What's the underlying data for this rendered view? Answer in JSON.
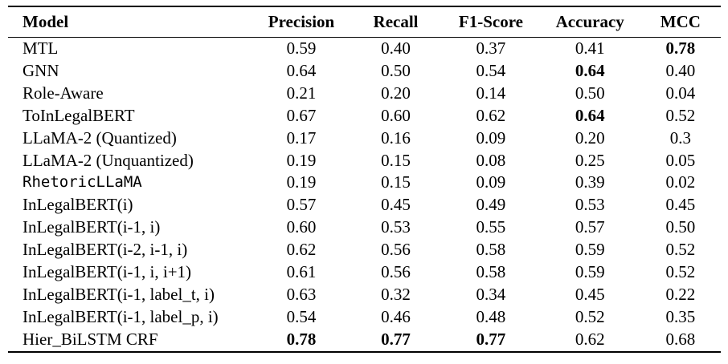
{
  "table": {
    "columns": [
      "Model",
      "Precision",
      "Recall",
      "F1-Score",
      "Accuracy",
      "MCC"
    ],
    "rows": [
      {
        "model": "MTL",
        "mono": false,
        "values": [
          "0.59",
          "0.40",
          "0.37",
          "0.41",
          "0.78"
        ],
        "bold": [
          4
        ]
      },
      {
        "model": "GNN",
        "mono": false,
        "values": [
          "0.64",
          "0.50",
          "0.54",
          "0.64",
          "0.40"
        ],
        "bold": [
          3
        ]
      },
      {
        "model": "Role-Aware",
        "mono": false,
        "values": [
          "0.21",
          "0.20",
          "0.14",
          "0.50",
          "0.04"
        ],
        "bold": []
      },
      {
        "model": "ToInLegalBERT",
        "mono": false,
        "values": [
          "0.67",
          "0.60",
          "0.62",
          "0.64",
          "0.52"
        ],
        "bold": [
          3
        ]
      },
      {
        "model": "LLaMA-2 (Quantized)",
        "mono": false,
        "values": [
          "0.17",
          "0.16",
          "0.09",
          "0.20",
          "0.3"
        ],
        "bold": []
      },
      {
        "model": "LLaMA-2 (Unquantized)",
        "mono": false,
        "values": [
          "0.19",
          "0.15",
          "0.08",
          "0.25",
          "0.05"
        ],
        "bold": []
      },
      {
        "model": "RhetoricLLaMA",
        "mono": true,
        "values": [
          "0.19",
          "0.15",
          "0.09",
          "0.39",
          "0.02"
        ],
        "bold": []
      },
      {
        "model": "InLegalBERT(i)",
        "mono": false,
        "values": [
          "0.57",
          "0.45",
          "0.49",
          "0.53",
          "0.45"
        ],
        "bold": []
      },
      {
        "model": "InLegalBERT(i-1, i)",
        "mono": false,
        "values": [
          "0.60",
          "0.53",
          "0.55",
          "0.57",
          "0.50"
        ],
        "bold": []
      },
      {
        "model": "InLegalBERT(i-2, i-1, i)",
        "mono": false,
        "values": [
          "0.62",
          "0.56",
          "0.58",
          "0.59",
          "0.52"
        ],
        "bold": []
      },
      {
        "model": "InLegalBERT(i-1, i, i+1)",
        "mono": false,
        "values": [
          "0.61",
          "0.56",
          "0.58",
          "0.59",
          "0.52"
        ],
        "bold": []
      },
      {
        "model": "InLegalBERT(i-1, label_t, i)",
        "mono": false,
        "values": [
          "0.63",
          "0.32",
          "0.34",
          "0.45",
          "0.22"
        ],
        "bold": []
      },
      {
        "model": "InLegalBERT(i-1, label_p, i)",
        "mono": false,
        "values": [
          "0.54",
          "0.46",
          "0.48",
          "0.52",
          "0.35"
        ],
        "bold": []
      },
      {
        "model": "Hier_BiLSTM CRF",
        "mono": false,
        "values": [
          "0.78",
          "0.77",
          "0.77",
          "0.62",
          "0.68"
        ],
        "bold": [
          0,
          1,
          2
        ]
      }
    ]
  },
  "colors": {
    "background": "#ffffff",
    "text": "#000000",
    "rule": "#000000"
  }
}
